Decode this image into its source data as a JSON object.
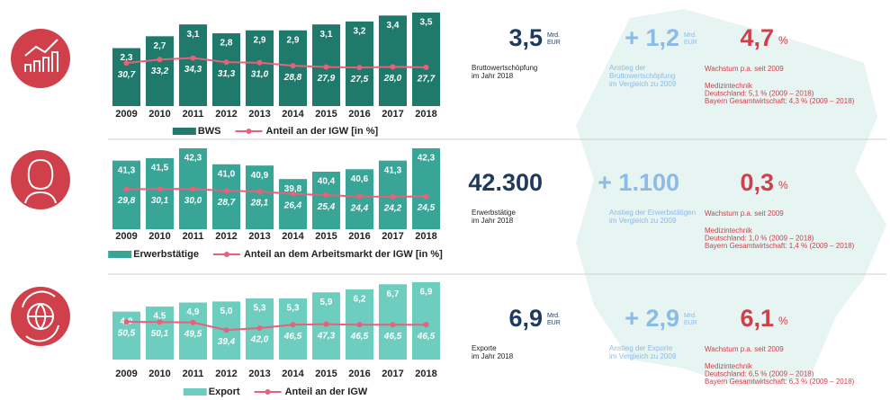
{
  "chart_data": [
    {
      "type": "bar",
      "categories": [
        "2009",
        "2010",
        "2011",
        "2012",
        "2013",
        "2014",
        "2015",
        "2016",
        "2017",
        "2018"
      ],
      "series": [
        {
          "name": "BWS",
          "color": "#1f7a6b",
          "values": [
            2.3,
            2.7,
            3.1,
            2.8,
            2.9,
            2.9,
            3.1,
            3.2,
            3.4,
            3.5
          ],
          "value_labels": [
            "2,3",
            "2,7",
            "3,1",
            "2,8",
            "2,9",
            "2,9",
            "3,1",
            "3,2",
            "3,4",
            "3,5"
          ]
        },
        {
          "name": "Anteil an der IGW [in %]",
          "type": "line",
          "color": "#e8607a",
          "values": [
            30.7,
            33.2,
            34.3,
            31.3,
            31.0,
            28.8,
            27.9,
            27.5,
            28.0,
            27.7
          ],
          "value_labels": [
            "30,7",
            "33,2",
            "34,3",
            "31,3",
            "31,0",
            "28,8",
            "27,9",
            "27,5",
            "28,0",
            "27,7"
          ]
        }
      ]
    },
    {
      "type": "bar",
      "categories": [
        "2009",
        "2010",
        "2011",
        "2012",
        "2013",
        "2014",
        "2015",
        "2016",
        "2017",
        "2018"
      ],
      "series": [
        {
          "name": "Erwerbstätige",
          "color": "#38a596",
          "values": [
            41.3,
            41.5,
            42.3,
            41.0,
            40.9,
            39.8,
            40.4,
            40.6,
            41.3,
            42.3
          ],
          "value_labels": [
            "41,3",
            "41,5",
            "42,3",
            "41,0",
            "40,9",
            "39,8",
            "40,4",
            "40,6",
            "41,3",
            "42,3"
          ]
        },
        {
          "name": "Anteil an dem Arbeitsmarkt der IGW [in %]",
          "type": "line",
          "color": "#e8607a",
          "values": [
            29.8,
            30.1,
            30.0,
            28.7,
            28.1,
            26.4,
            25.4,
            24.4,
            24.2,
            24.5
          ],
          "value_labels": [
            "29,8",
            "30,1",
            "30,0",
            "28,7",
            "28,1",
            "26,4",
            "25,4",
            "24,4",
            "24,2",
            "24,5"
          ]
        }
      ]
    },
    {
      "type": "bar",
      "categories": [
        "2009",
        "2010",
        "2011",
        "2012",
        "2013",
        "2014",
        "2015",
        "2016",
        "2017",
        "2018"
      ],
      "series": [
        {
          "name": "Export",
          "color": "#6dcdbf",
          "values": [
            4.0,
            4.5,
            4.9,
            5.0,
            5.3,
            5.3,
            5.9,
            6.2,
            6.7,
            6.9
          ],
          "value_labels": [
            "4,0",
            "4,5",
            "4,9",
            "5,0",
            "5,3",
            "5,3",
            "5,9",
            "6,2",
            "6,7",
            "6,9"
          ]
        },
        {
          "name": "Anteil an der IGW",
          "type": "line",
          "color": "#e8607a",
          "values": [
            50.5,
            50.1,
            49.5,
            39.4,
            42.0,
            46.5,
            47.3,
            46.5,
            46.5,
            46.5
          ],
          "value_labels": [
            "50,5",
            "50,1",
            "49,5",
            "39,4",
            "42,0",
            "46,5",
            "47,3",
            "46,5",
            "46,5",
            "46,5"
          ]
        }
      ]
    }
  ],
  "kpis": [
    {
      "total": {
        "value": "3,5",
        "unit": [
          "Mrd.",
          "EUR"
        ],
        "caption": [
          "Bruttowertschöpfung",
          "im Jahr 2018"
        ]
      },
      "growth": {
        "value": "+ 1,2",
        "unit": [
          "Mrd.",
          "EUR"
        ],
        "caption": [
          "Anstieg der",
          "Bruttowertschöpfung",
          "im Vergleich zu 2009"
        ]
      },
      "rate": {
        "value": "4,7",
        "unit": "%",
        "caption": "Wachstum p.a. seit 2009",
        "details": [
          "Medizintechnik",
          "Deutschland: 5,1 % (2009 – 2018)",
          "Bayern Gesamtwirtschaft: 4,3 % (2009 – 2018)"
        ]
      }
    },
    {
      "total": {
        "value": "42.300",
        "unit": [],
        "caption": [
          "Erwerbstätige",
          "im Jahr 2018"
        ]
      },
      "growth": {
        "value": "+ 1.100",
        "unit": [],
        "caption": [
          "Anstieg der Erwerbstätigen",
          "im Vergleich zu 2009"
        ]
      },
      "rate": {
        "value": "0,3",
        "unit": "%",
        "caption": "Wachstum p.a. seit 2009",
        "details": [
          "Medizintechnik",
          "Deutschland: 1,0 % (2009 – 2018)",
          "Bayern Gesamtwirtschaft: 1,4 % (2009 – 2018)"
        ]
      }
    },
    {
      "total": {
        "value": "6,9",
        "unit": [
          "Mrd.",
          "EUR"
        ],
        "caption": [
          "Exporte",
          "im Jahr 2018"
        ]
      },
      "growth": {
        "value": "+ 2,9",
        "unit": [
          "Mrd.",
          "EUR"
        ],
        "caption": [
          "Anstieg der Exporte",
          "im Vergleich zu 2009"
        ]
      },
      "rate": {
        "value": "6,1",
        "unit": "%",
        "caption": "Wachstum p.a. seit 2009",
        "details": [
          "Medizintechnik",
          "Deutschland: 6,5 % (2009 – 2018)",
          "Bayern Gesamtwirtschaft: 6,3 % (2009 – 2018)"
        ]
      }
    }
  ]
}
